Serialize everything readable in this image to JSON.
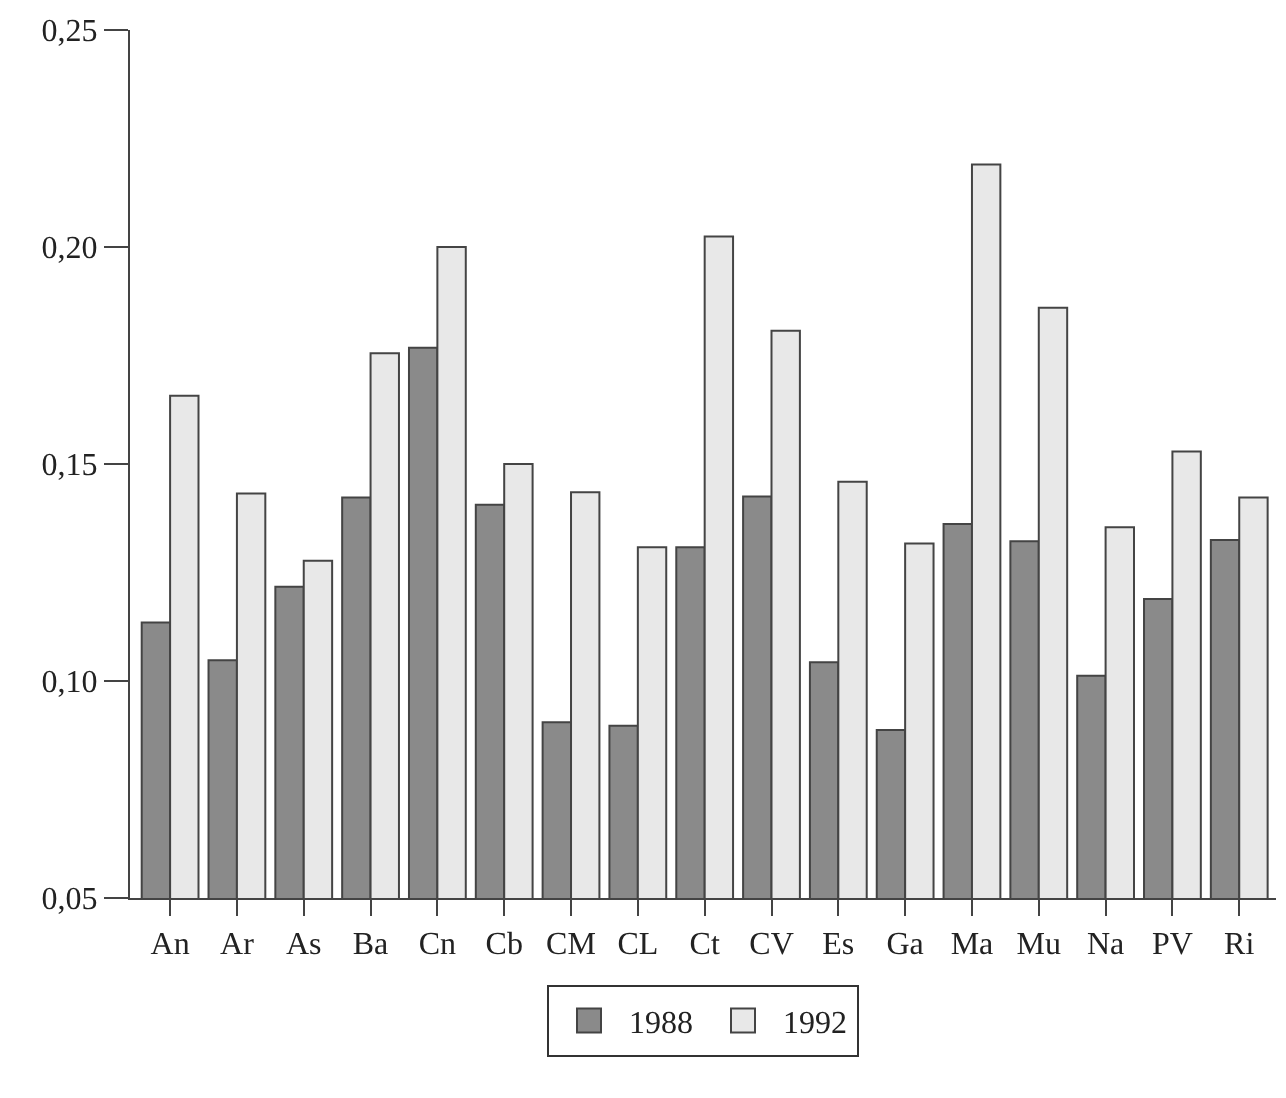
{
  "chart_data": {
    "type": "bar",
    "categories": [
      "An",
      "Ar",
      "As",
      "Ba",
      "Cn",
      "Cb",
      "CM",
      "CL",
      "Ct",
      "CV",
      "Es",
      "Ga",
      "Ma",
      "Mu",
      "Na",
      "PV",
      "Ri"
    ],
    "series": [
      {
        "name": "1988",
        "color": "#8a8a8a",
        "values": [
          0.1135,
          0.1048,
          0.1217,
          0.1423,
          0.1768,
          0.1406,
          0.0905,
          0.0897,
          0.1308,
          0.1425,
          0.1043,
          0.0887,
          0.1362,
          0.1322,
          0.1012,
          0.1189,
          0.1325
        ]
      },
      {
        "name": "1992",
        "color": "#e8e8e8",
        "values": [
          0.1657,
          0.1432,
          0.1277,
          0.1755,
          0.2,
          0.15,
          0.1435,
          0.1308,
          0.2024,
          0.1807,
          0.1459,
          0.1317,
          0.219,
          0.186,
          0.1354,
          0.1529,
          0.1423
        ]
      }
    ],
    "ylim": [
      0.05,
      0.25
    ],
    "yticks": [
      {
        "value": 0.05,
        "label": "0,05"
      },
      {
        "value": 0.1,
        "label": "0,10"
      },
      {
        "value": 0.15,
        "label": "0,15"
      },
      {
        "value": 0.2,
        "label": "0,20"
      },
      {
        "value": 0.25,
        "label": "0,25"
      }
    ],
    "legend": "bottom"
  }
}
